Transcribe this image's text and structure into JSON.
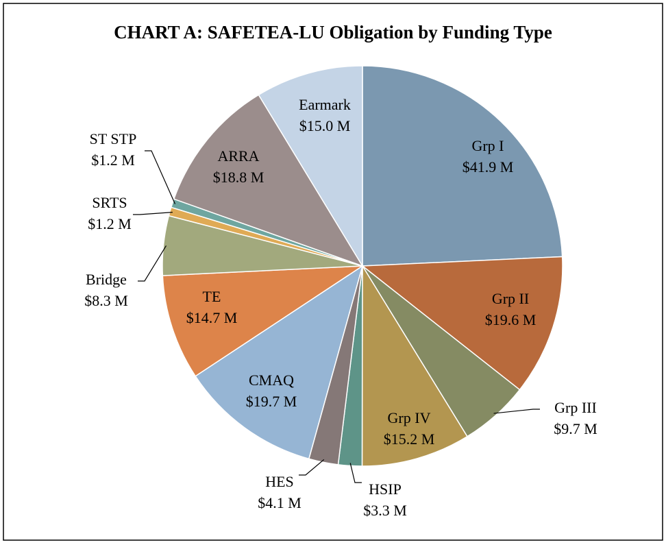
{
  "chart_data": {
    "type": "pie",
    "title": "CHART A: SAFETEA-LU Obligation by Funding Type",
    "categories": [
      "Grp I",
      "Grp II",
      "Grp III",
      "Grp IV",
      "HSIP",
      "HES",
      "CMAQ",
      "TE",
      "Bridge",
      "SRTS",
      "ST STP",
      "ARRA",
      "Earmark"
    ],
    "values": [
      41.9,
      19.6,
      9.7,
      15.2,
      3.3,
      4.1,
      19.7,
      14.7,
      8.3,
      1.2,
      1.2,
      18.8,
      15.0
    ],
    "value_labels": [
      "$41.9 M",
      "$19.6 M",
      "$9.7 M",
      "$15.2 M",
      "$3.3 M",
      "$4.1 M",
      "$19.7 M",
      "$14.7 M",
      "$8.3 M",
      "$1.2 M",
      "$1.2 M",
      "$18.8 M",
      "$15.0 M"
    ],
    "colors": [
      "#7b98b0",
      "#b86a3c",
      "#858b63",
      "#b39650",
      "#5e9488",
      "#857877",
      "#96b5d4",
      "#dd844a",
      "#a2a97d",
      "#dfaa55",
      "#6ea6a0",
      "#9b8d8c",
      "#c4d4e6"
    ]
  }
}
